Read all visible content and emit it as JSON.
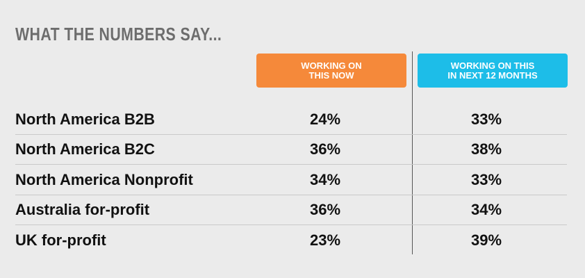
{
  "header": {
    "title": "WHAT THE NUMBERS SAY..."
  },
  "table": {
    "columns": [
      {
        "lines": [
          "WORKING ON",
          "THIS NOW"
        ],
        "color": "#f5893a"
      },
      {
        "lines": [
          "WORKING ON THIS",
          "IN NEXT 12 MONTHS"
        ],
        "color": "#1dbde8"
      }
    ],
    "rows": [
      [
        "North America B2B",
        "24%",
        "33%"
      ],
      [
        "North America B2C",
        "36%",
        "38%"
      ],
      [
        "North America Nonprofit",
        "34%",
        "33%"
      ],
      [
        "Australia for-profit",
        "36%",
        "34%"
      ],
      [
        "UK for-profit",
        "23%",
        "39%"
      ]
    ]
  }
}
